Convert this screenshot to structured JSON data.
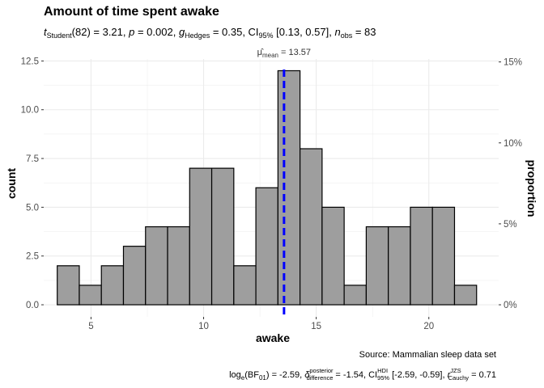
{
  "chart_data": {
    "type": "bar",
    "title": "Amount of time spent awake",
    "subtitle": {
      "t_label": "t",
      "t_sub": "Student",
      "t_value": "(82) = 3.21, ",
      "p_label": "p",
      "p_value": " = 0.002, ",
      "g_label": "g",
      "g_sub": "Hedges",
      "g_value": " = 0.35, CI",
      "ci_sub": "95%",
      "ci_value": " [0.13, 0.57], ",
      "n_label": "n",
      "n_sub": "obs",
      "n_value": " = 83"
    },
    "xlabel": "awake",
    "ylabel": "count",
    "y2label": "proportion",
    "xlim": [
      2.9,
      23.1
    ],
    "ylim": [
      -0.62,
      12.6
    ],
    "x_ticks": [
      5,
      10,
      15,
      20
    ],
    "x_tick_labels": [
      "5",
      "10",
      "15",
      "20"
    ],
    "y_ticks": [
      0,
      2.5,
      5,
      7.5,
      10,
      12.5
    ],
    "y_tick_labels": [
      "0.0",
      "2.5",
      "5.0",
      "7.5",
      "10.0",
      "12.5"
    ],
    "y2_ticks": [
      0,
      4.15,
      8.3,
      12.45
    ],
    "y2_tick_labels": [
      "0%",
      "5%",
      "10%",
      "15%"
    ],
    "bin_width": 0.98,
    "bins": [
      {
        "x": 3.5,
        "count": 2
      },
      {
        "x": 4.48,
        "count": 1
      },
      {
        "x": 5.46,
        "count": 2
      },
      {
        "x": 6.44,
        "count": 3
      },
      {
        "x": 7.42,
        "count": 4
      },
      {
        "x": 8.4,
        "count": 4
      },
      {
        "x": 9.38,
        "count": 7
      },
      {
        "x": 10.36,
        "count": 7
      },
      {
        "x": 11.34,
        "count": 2
      },
      {
        "x": 12.32,
        "count": 6
      },
      {
        "x": 13.3,
        "count": 12
      },
      {
        "x": 14.28,
        "count": 8
      },
      {
        "x": 15.26,
        "count": 5
      },
      {
        "x": 16.24,
        "count": 1
      },
      {
        "x": 17.22,
        "count": 4
      },
      {
        "x": 18.2,
        "count": 4
      },
      {
        "x": 19.18,
        "count": 5
      },
      {
        "x": 20.16,
        "count": 5
      },
      {
        "x": 21.14,
        "count": 1
      }
    ],
    "mean": {
      "value": 13.57,
      "label_prefix": "mean",
      "label_value": " = 13.57"
    },
    "grid": true,
    "colors": {
      "bar_fill": "#9e9e9e",
      "bar_stroke": "#000000",
      "mean_line": "#0000ff",
      "grid": "#ebebeb"
    },
    "caption": "Source: Mammalian sleep data set",
    "footer": {
      "bf_prefix": "log",
      "bf_sub": "e",
      "bf_mid": "(BF",
      "bf_mid_sub": "01",
      "bf_value": ") = -2.59, ",
      "delta_sup": "posterior",
      "delta_sub": "difference",
      "delta_value": " = -1.54, CI",
      "hdi_sup": "HDI",
      "hdi_sub": "95%",
      "hdi_value": " [-2.59, -0.59], ",
      "r_label": "r",
      "r_sup": "JZS",
      "r_sub": "Cauchy",
      "r_value": " = 0.71"
    }
  }
}
